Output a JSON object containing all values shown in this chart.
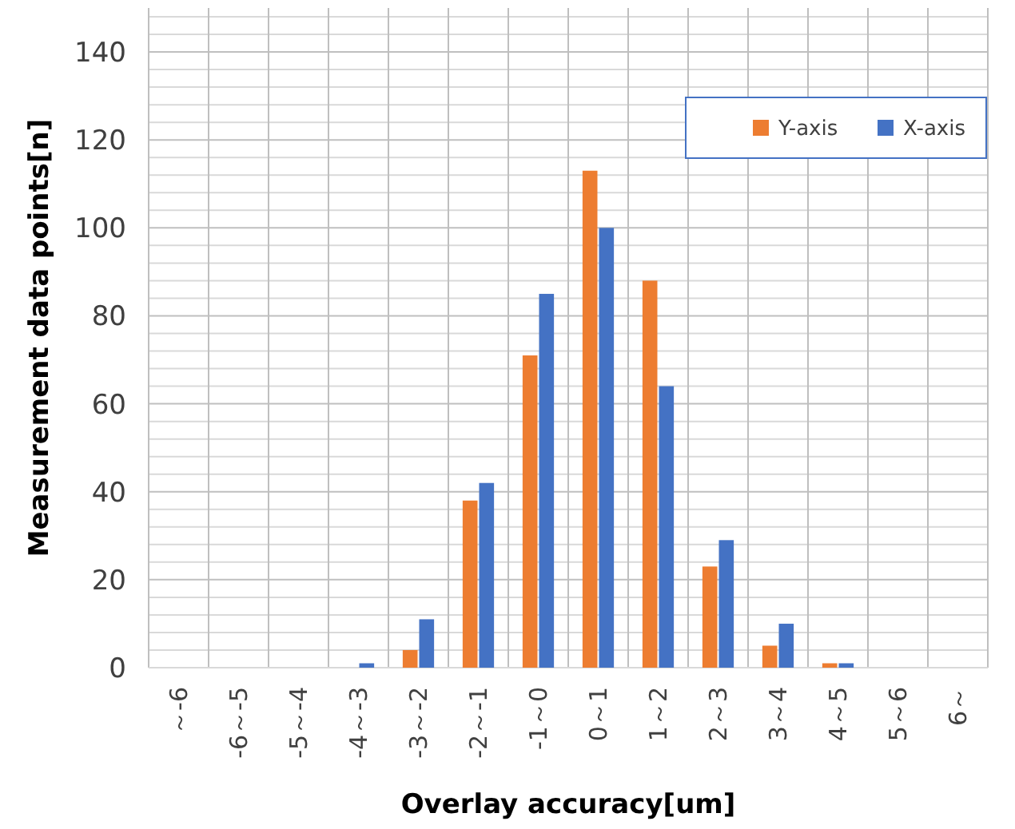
{
  "chart_data": {
    "type": "bar",
    "xlabel": "Overlay accuracy[um]",
    "ylabel": "Measurement data points[n]",
    "categories": [
      "～-6",
      "-6～-5",
      "-5～-4",
      "-4～-3",
      "-3～-2",
      "-2～-1",
      "-1～0",
      "0～1",
      "1～2",
      "2～3",
      "3～4",
      "4～5",
      "5～6",
      "6～"
    ],
    "series": [
      {
        "name": "Y-axis",
        "color": "#ed7d31",
        "values": [
          0,
          0,
          0,
          0,
          4,
          38,
          71,
          113,
          88,
          23,
          5,
          1,
          0,
          0
        ]
      },
      {
        "name": "X-axis",
        "color": "#4472c4",
        "values": [
          0,
          0,
          0,
          1,
          11,
          42,
          85,
          100,
          64,
          29,
          10,
          1,
          0,
          0
        ]
      }
    ],
    "ylim": [
      0,
      150
    ],
    "yticks": [
      0,
      {
        "value": 4,
        "label": null
      },
      {
        "value": 8,
        "label": null
      },
      {
        "value": 12,
        "label": null
      },
      {
        "value": 16,
        "label": null
      },
      20,
      {
        "value": 24,
        "label": null
      },
      {
        "value": 28,
        "label": null
      },
      {
        "value": 32,
        "label": null
      },
      {
        "value": 36,
        "label": null
      },
      40,
      {
        "value": 44,
        "label": null
      },
      {
        "value": 48,
        "label": null
      },
      {
        "value": 52,
        "label": null
      },
      {
        "value": 56,
        "label": null
      },
      60,
      {
        "value": 64,
        "label": null
      },
      {
        "value": 68,
        "label": null
      },
      {
        "value": 72,
        "label": null
      },
      {
        "value": 76,
        "label": null
      },
      80,
      {
        "value": 84,
        "label": null
      },
      {
        "value": 88,
        "label": null
      },
      {
        "value": 92,
        "label": null
      },
      {
        "value": 96,
        "label": null
      },
      100,
      {
        "value": 104,
        "label": null
      },
      {
        "value": 108,
        "label": null
      },
      {
        "value": 112,
        "label": null
      },
      {
        "value": 116,
        "label": null
      },
      120,
      {
        "value": 124,
        "label": null
      },
      {
        "value": 128,
        "label": null
      },
      {
        "value": 132,
        "label": null
      },
      {
        "value": 136,
        "label": null
      },
      140,
      {
        "value": 144,
        "label": null
      },
      {
        "value": 148,
        "label": null
      }
    ],
    "grid": true,
    "legend": "top right"
  }
}
